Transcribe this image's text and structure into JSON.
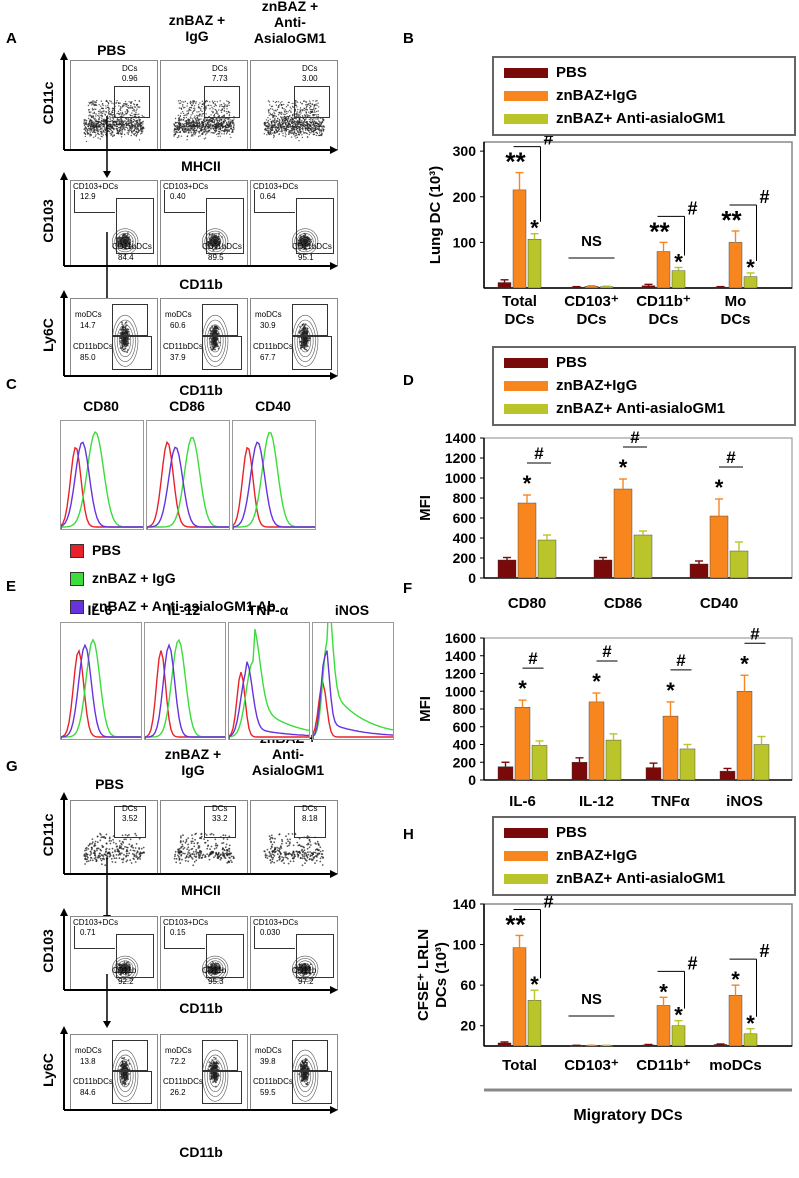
{
  "panel_labels": {
    "A": "A",
    "B": "B",
    "C": "C",
    "D": "D",
    "E": "E",
    "F": "F",
    "G": "G",
    "H": "H"
  },
  "flow_columns": {
    "pbs": "PBS",
    "igg": "znBAZ +\nIgG",
    "anti": "znBAZ +\nAnti-\nAsialoGM1"
  },
  "flow_columns_g": {
    "pbs": "PBS",
    "igg": "znBAZ +\nIgG",
    "anti": "znBAZ +\nAnti-\nAsialoGM1"
  },
  "axes": {
    "cd11c": "CD11c",
    "mhcii": "MHCII",
    "cd103": "CD103",
    "cd11b": "CD11b",
    "ly6c": "Ly6C"
  },
  "panel_a": {
    "row1": [
      {
        "label": "DCs",
        "value": "0.96"
      },
      {
        "label": "DCs",
        "value": "7.73"
      },
      {
        "label": "DCs",
        "value": "3.00"
      }
    ],
    "row2": [
      {
        "g1": "CD103+DCs",
        "v1": "12.9",
        "g2": "CD11bDCs",
        "v2": "84.4"
      },
      {
        "g1": "CD103+DCs",
        "v1": "0.40",
        "g2": "CD11bDCs",
        "v2": "89.5"
      },
      {
        "g1": "CD103+DCs",
        "v1": "0.64",
        "g2": "CD11bDCs",
        "v2": "95.1"
      }
    ],
    "row3": [
      {
        "g1": "moDCs",
        "v1": "14.7",
        "g2": "CD11bDCs",
        "v2": "85.0"
      },
      {
        "g1": "moDCs",
        "v1": "60.6",
        "g2": "CD11bDCs",
        "v2": "37.9"
      },
      {
        "g1": "moDCs",
        "v1": "30.9",
        "g2": "CD11bDCs",
        "v2": "67.7"
      }
    ]
  },
  "panel_g": {
    "row1": [
      {
        "label": "DCs",
        "value": "3.52"
      },
      {
        "label": "DCs",
        "value": "33.2"
      },
      {
        "label": "DCs",
        "value": "8.18"
      }
    ],
    "row2": [
      {
        "g1": "CD103+DCs",
        "v1": "0.71",
        "g2": "CD11b",
        "v2": "92.2"
      },
      {
        "g1": "CD103+DCs",
        "v1": "0.15",
        "g2": "CD11b",
        "v2": "95.3"
      },
      {
        "g1": "CD103+DCs",
        "v1": "0.030",
        "g2": "CD11b",
        "v2": "97.2"
      }
    ],
    "row3": [
      {
        "g1": "moDCs",
        "v1": "13.8",
        "g2": "CD11bDCs",
        "v2": "84.6"
      },
      {
        "g1": "moDCs",
        "v1": "72.2",
        "g2": "CD11bDCs",
        "v2": "26.2"
      },
      {
        "g1": "moDCs",
        "v1": "39.8",
        "g2": "CD11bDCs",
        "v2": "59.5"
      }
    ]
  },
  "hist_c": {
    "titles": [
      "CD80",
      "CD86",
      "CD40"
    ]
  },
  "hist_e": {
    "titles": [
      "IL-6",
      "IL-12",
      "TNF-α",
      "iNOS"
    ]
  },
  "hist_legend": [
    {
      "label": "PBS",
      "color": "#e8222a"
    },
    {
      "label": "znBAZ + IgG",
      "color": "#3bdc3b"
    },
    {
      "label": "znBAZ + Anti-asialoGM1 Ab",
      "color": "#6633dd"
    }
  ],
  "bar_legend": [
    {
      "label": "PBS",
      "color": "#7a0a0a"
    },
    {
      "label": "znBAZ+IgG",
      "color": "#f7861e"
    },
    {
      "label": "znBAZ+ Anti-asialoGM1",
      "color": "#b9c52a"
    }
  ],
  "colors": {
    "pbs": "#7a0a0a",
    "igg": "#f7861e",
    "anti": "#b9c52a"
  },
  "chart_data": [
    {
      "id": "B",
      "type": "bar",
      "ylabel": "Lung DC (10³)",
      "ylim": [
        0,
        320
      ],
      "yticks": [
        100,
        200,
        300
      ],
      "categories": [
        "Total\nDCs",
        "CD103⁺\nDCs",
        "CD11b⁺\nDCs",
        "Mo\nDCs"
      ],
      "series": [
        {
          "name": "PBS",
          "values": [
            12,
            2,
            5,
            2
          ],
          "err": [
            6,
            1,
            3,
            1
          ]
        },
        {
          "name": "znBAZ+IgG",
          "values": [
            215,
            4,
            80,
            100
          ],
          "err": [
            38,
            1,
            20,
            25
          ]
        },
        {
          "name": "znBAZ+ Anti-asialoGM1",
          "values": [
            107,
            3,
            38,
            25
          ],
          "err": [
            12,
            1,
            7,
            8
          ]
        }
      ],
      "annotations": [
        "**",
        "*",
        "#",
        "NS",
        "**",
        "*",
        "#",
        "**",
        "*",
        "#"
      ]
    },
    {
      "id": "D",
      "type": "bar",
      "ylabel": "MFI",
      "ylim": [
        0,
        1400
      ],
      "yticks": [
        0,
        200,
        400,
        600,
        800,
        1000,
        1200,
        1400
      ],
      "categories": [
        "CD80",
        "CD86",
        "CD40"
      ],
      "series": [
        {
          "name": "PBS",
          "values": [
            180,
            180,
            140
          ],
          "err": [
            25,
            25,
            30
          ]
        },
        {
          "name": "znBAZ+IgG",
          "values": [
            750,
            890,
            620
          ],
          "err": [
            80,
            100,
            170
          ]
        },
        {
          "name": "znBAZ+ Anti-asialoGM1",
          "values": [
            380,
            430,
            270
          ],
          "err": [
            50,
            40,
            90
          ]
        }
      ],
      "annotations": [
        "*",
        "#",
        "*",
        "#",
        "*",
        "#"
      ]
    },
    {
      "id": "F",
      "type": "bar",
      "ylabel": "MFI",
      "ylim": [
        0,
        1600
      ],
      "yticks": [
        0,
        200,
        400,
        600,
        800,
        1000,
        1200,
        1400,
        1600
      ],
      "categories": [
        "IL-6",
        "IL-12",
        "TNFα",
        "iNOS"
      ],
      "series": [
        {
          "name": "PBS",
          "values": [
            150,
            200,
            140,
            100
          ],
          "err": [
            50,
            50,
            50,
            30
          ]
        },
        {
          "name": "znBAZ+IgG",
          "values": [
            820,
            880,
            720,
            1000
          ],
          "err": [
            80,
            100,
            160,
            180
          ]
        },
        {
          "name": "znBAZ+ Anti-asialoGM1",
          "values": [
            390,
            450,
            350,
            400
          ],
          "err": [
            50,
            70,
            50,
            90
          ]
        }
      ],
      "annotations": [
        "*",
        "#",
        "*",
        "#",
        "*",
        "#",
        "*",
        "#"
      ]
    },
    {
      "id": "H",
      "type": "bar",
      "ylabel": "CFSE⁺ LRLN\nDCs (10³)",
      "xlabel": "Migratory DCs",
      "ylim": [
        0,
        140
      ],
      "yticks": [
        20,
        60,
        100,
        140
      ],
      "categories": [
        "Total",
        "CD103⁺",
        "CD11b⁺",
        "moDCs"
      ],
      "series": [
        {
          "name": "PBS",
          "values": [
            3,
            0.5,
            1,
            1.5
          ],
          "err": [
            1,
            0.2,
            0.5,
            0.5
          ]
        },
        {
          "name": "znBAZ+IgG",
          "values": [
            97,
            0.5,
            40,
            50
          ],
          "err": [
            12,
            0.2,
            8,
            10
          ]
        },
        {
          "name": "znBAZ+ Anti-asialoGM1",
          "values": [
            45,
            0.5,
            20,
            12
          ],
          "err": [
            10,
            0.2,
            5,
            5
          ]
        }
      ],
      "annotations": [
        "**",
        "*",
        "#",
        "NS",
        "*",
        "*",
        "#",
        "*",
        "*",
        "#"
      ]
    }
  ]
}
